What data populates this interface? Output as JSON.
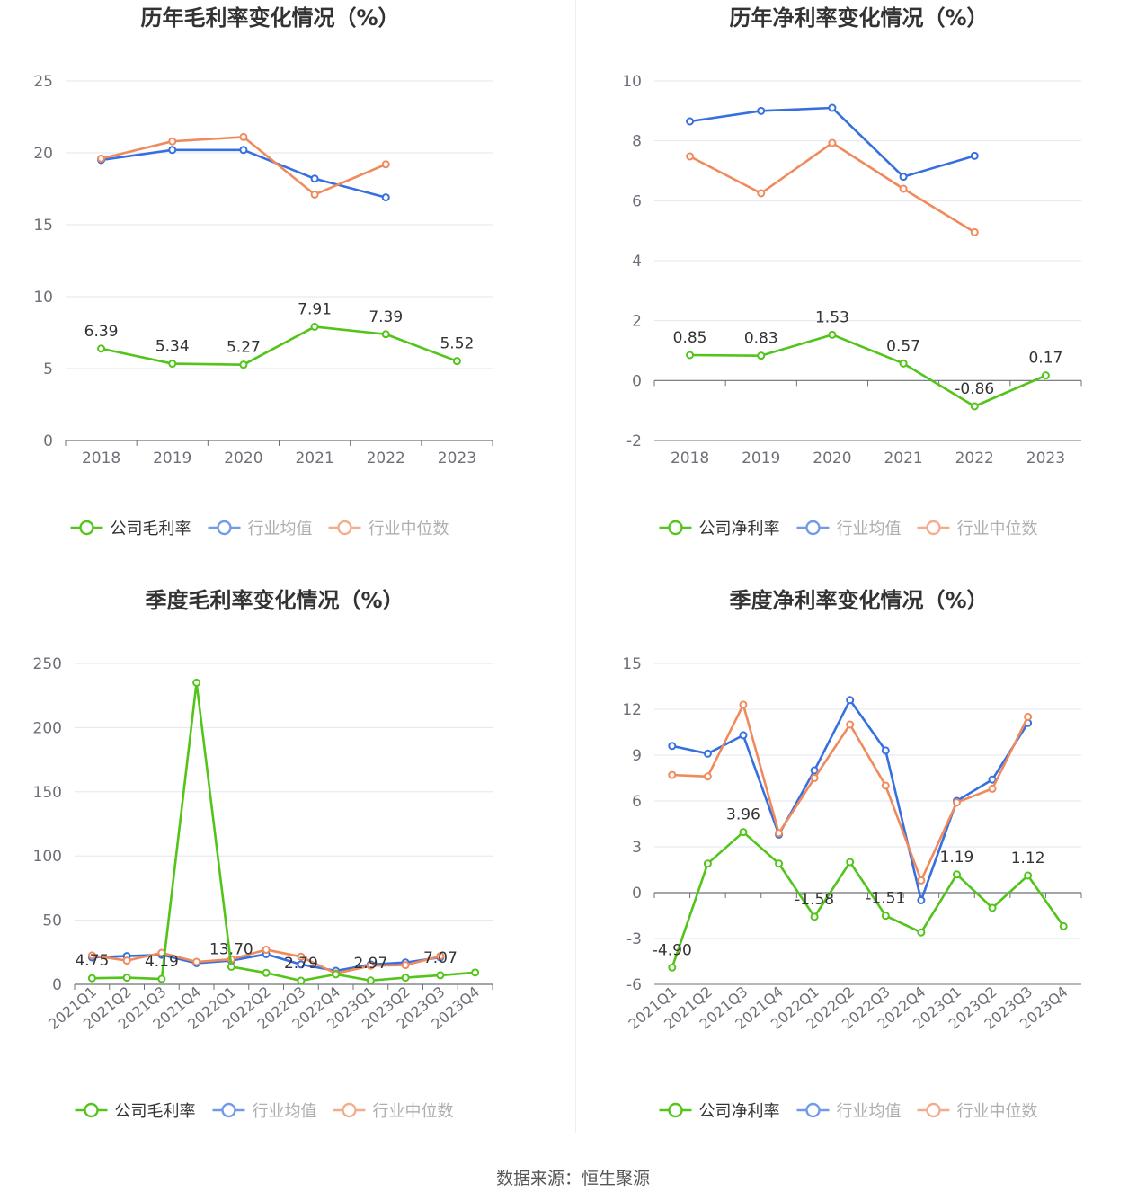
{
  "source": "数据来源：恒生聚源",
  "colors": {
    "company": "#52c41a",
    "avg": "#3670e0",
    "median": "#f08a5d"
  },
  "chart_data": [
    {
      "type": "line",
      "title": "历年毛利率变化情况（%）",
      "categories": [
        "2018",
        "2019",
        "2020",
        "2021",
        "2022",
        "2023"
      ],
      "ylim": [
        0,
        25
      ],
      "yticks": [
        0,
        5,
        10,
        15,
        20,
        25
      ],
      "series": [
        {
          "name": "公司毛利率",
          "role": "company",
          "values": [
            6.39,
            5.34,
            5.27,
            7.91,
            7.39,
            5.52
          ],
          "labels": [
            "6.39",
            "5.34",
            "5.27",
            "7.91",
            "7.39",
            "5.52"
          ]
        },
        {
          "name": "行业均值",
          "role": "avg",
          "values": [
            19.5,
            20.2,
            20.2,
            18.2,
            16.9,
            null
          ]
        },
        {
          "name": "行业中位数",
          "role": "median",
          "values": [
            19.6,
            20.8,
            21.1,
            17.1,
            19.2,
            null
          ]
        }
      ],
      "legend": [
        "公司毛利率",
        "行业均值",
        "行业中位数"
      ]
    },
    {
      "type": "line",
      "title": "历年净利率变化情况（%）",
      "categories": [
        "2018",
        "2019",
        "2020",
        "2021",
        "2022",
        "2023"
      ],
      "ylim": [
        -2,
        10
      ],
      "yticks": [
        -2,
        0,
        2,
        4,
        6,
        8,
        10
      ],
      "series": [
        {
          "name": "公司净利率",
          "role": "company",
          "values": [
            0.85,
            0.83,
            1.53,
            0.57,
            -0.86,
            0.17
          ],
          "labels": [
            "0.85",
            "0.83",
            "1.53",
            "0.57",
            "-0.86",
            "0.17"
          ]
        },
        {
          "name": "行业均值",
          "role": "avg",
          "values": [
            8.65,
            9.0,
            9.1,
            6.8,
            7.5,
            null
          ]
        },
        {
          "name": "行业中位数",
          "role": "median",
          "values": [
            7.48,
            6.25,
            7.93,
            6.4,
            4.95,
            null
          ]
        }
      ],
      "legend": [
        "公司净利率",
        "行业均值",
        "行业中位数"
      ]
    },
    {
      "type": "line",
      "title": "季度毛利率变化情况（%）",
      "categories": [
        "2021Q1",
        "2021Q2",
        "2021Q3",
        "2021Q4",
        "2022Q1",
        "2022Q2",
        "2022Q3",
        "2022Q4",
        "2023Q1",
        "2023Q2",
        "2023Q3",
        "2023Q4"
      ],
      "ylim": [
        0,
        250
      ],
      "yticks": [
        0,
        50,
        100,
        150,
        200,
        250
      ],
      "series": [
        {
          "name": "公司毛利率",
          "role": "company",
          "values": [
            4.75,
            5.2,
            4.19,
            235,
            13.7,
            8.9,
            2.79,
            7.8,
            2.97,
            5.2,
            7.07,
            9.2
          ],
          "labels": [
            "4.75",
            "",
            "4.19",
            "",
            "13.70",
            "",
            "2.79",
            "",
            "2.97",
            "",
            "7.07",
            ""
          ]
        },
        {
          "name": "行业均值",
          "role": "avg",
          "values": [
            21,
            22,
            23,
            16.5,
            18.5,
            23.5,
            15.5,
            10.5,
            15.5,
            17,
            21,
            null
          ]
        },
        {
          "name": "行业中位数",
          "role": "median",
          "values": [
            22.5,
            18.5,
            24.5,
            17.5,
            19.5,
            27,
            21.5,
            8.5,
            14.5,
            15,
            22,
            null
          ]
        }
      ],
      "legend": [
        "公司毛利率",
        "行业均值",
        "行业中位数"
      ]
    },
    {
      "type": "line",
      "title": "季度净利率变化情况（%）",
      "categories": [
        "2021Q1",
        "2021Q2",
        "2021Q3",
        "2021Q4",
        "2022Q1",
        "2022Q2",
        "2022Q3",
        "2022Q4",
        "2023Q1",
        "2023Q2",
        "2023Q3",
        "2023Q4"
      ],
      "ylim": [
        -6,
        15
      ],
      "yticks": [
        -6,
        -3,
        0,
        3,
        6,
        9,
        12,
        15
      ],
      "series": [
        {
          "name": "公司净利率",
          "role": "company",
          "values": [
            -4.9,
            1.9,
            3.96,
            1.9,
            -1.58,
            2.0,
            -1.51,
            -2.6,
            1.19,
            -1.0,
            1.12,
            -2.2
          ],
          "labels": [
            "-4.90",
            "",
            "3.96",
            "",
            "-1.58",
            "",
            "-1.51",
            "",
            "1.19",
            "",
            "1.12",
            ""
          ]
        },
        {
          "name": "行业均值",
          "role": "avg",
          "values": [
            9.6,
            9.1,
            10.3,
            3.8,
            8.0,
            12.6,
            9.3,
            -0.5,
            6.0,
            7.4,
            11.1,
            null
          ]
        },
        {
          "name": "行业中位数",
          "role": "median",
          "values": [
            7.7,
            7.6,
            12.3,
            3.9,
            7.5,
            11.0,
            7.0,
            0.8,
            5.9,
            6.8,
            11.5,
            null
          ]
        }
      ],
      "legend": [
        "公司净利率",
        "行业均值",
        "行业中位数"
      ]
    }
  ]
}
